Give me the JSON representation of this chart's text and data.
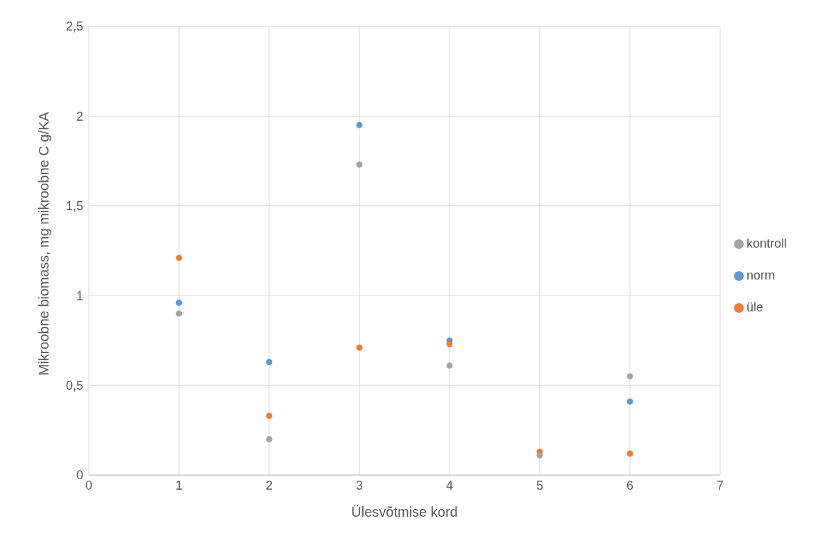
{
  "chart_data": {
    "type": "scatter",
    "xlabel": "Ülesvõtmise kord",
    "ylabel": "Mikroobne biomass, mg mikroobne C g/KA",
    "x": [
      1,
      2,
      3,
      4,
      5,
      6
    ],
    "series": [
      {
        "name": "norm",
        "color": "#5b9bd5",
        "values": [
          0.96,
          0.63,
          1.95,
          0.75,
          null,
          0.41
        ]
      },
      {
        "name": "üle",
        "color": "#ed7d31",
        "values": [
          1.21,
          0.33,
          0.71,
          0.73,
          0.13,
          0.12
        ]
      },
      {
        "name": "kontroll",
        "color": "#a5a5a5",
        "values": [
          0.9,
          0.2,
          1.73,
          0.61,
          0.11,
          0.55
        ]
      }
    ],
    "xlim": [
      0,
      7
    ],
    "xticks": [
      0,
      1,
      2,
      3,
      4,
      5,
      6,
      7
    ],
    "ylim": [
      0,
      2.5
    ],
    "yticks": [
      0,
      {
        "value": 0.5,
        "label": "0,5"
      },
      1,
      {
        "value": 1.5,
        "label": "1,5"
      },
      2,
      {
        "value": 2.5,
        "label": "2,5"
      }
    ],
    "grid": true,
    "legend": "right",
    "marker": "circle"
  }
}
